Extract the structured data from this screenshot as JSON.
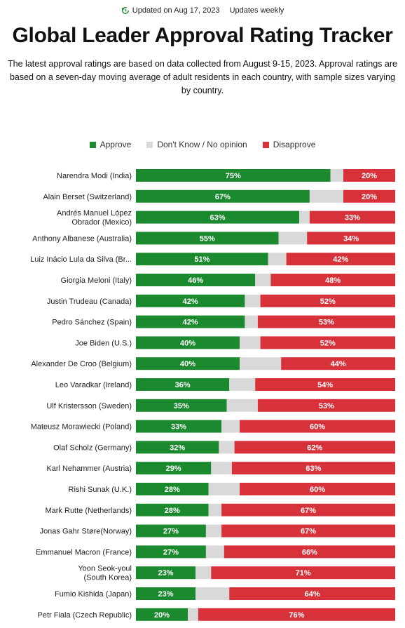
{
  "header": {
    "updated": "Updated on Aug 17, 2023",
    "frequency": "Updates weekly",
    "title": "Global Leader Approval Rating Tracker",
    "subtitle": "The latest approval ratings are based on data collected from August 9-15, 2023. Approval ratings are based on a seven-day moving average of adult residents in each country, with sample sizes varying by country."
  },
  "legend": {
    "approve": "Approve",
    "dont_know": "Don't Know / No opinion",
    "disapprove": "Disapprove"
  },
  "colors": {
    "approve": "#1b8a2e",
    "dont_know": "#d9d9d9",
    "disapprove": "#d7313a",
    "icon": "#1b8a2e"
  },
  "chart_data": {
    "type": "bar",
    "orientation": "horizontal-stacked",
    "title": "Global Leader Approval Rating Tracker",
    "categories": [
      [
        "Narendra Modi (India)"
      ],
      [
        "Alain Berset (Switzerland)"
      ],
      [
        "Andrés Manuel López",
        "Obrador (Mexico)"
      ],
      [
        "Anthony Albanese (Australia)"
      ],
      [
        "Luiz Inácio Lula da Silva (Br..."
      ],
      [
        "Giorgia Meloni (Italy)"
      ],
      [
        "Justin Trudeau (Canada)"
      ],
      [
        "Pedro Sánchez (Spain)"
      ],
      [
        "Joe Biden (U.S.)"
      ],
      [
        "Alexander De Croo (Belgium)"
      ],
      [
        "Leo Varadkar (Ireland)"
      ],
      [
        "Ulf Kristersson (Sweden)"
      ],
      [
        "Mateusz Morawiecki (Poland)"
      ],
      [
        "Olaf Scholz (Germany)"
      ],
      [
        "Karl Nehammer (Austria)"
      ],
      [
        "Rishi Sunak (U.K.)"
      ],
      [
        "Mark Rutte (Netherlands)"
      ],
      [
        "Jonas Gahr Støre(Norway)"
      ],
      [
        "Emmanuel Macron (France)"
      ],
      [
        "Yoon Seok-youl",
        "(South Korea)"
      ],
      [
        "Fumio Kishida (Japan)"
      ],
      [
        "Petr Fiala (Czech Republic)"
      ]
    ],
    "series": [
      {
        "name": "Approve",
        "values": [
          75,
          67,
          63,
          55,
          51,
          46,
          42,
          42,
          40,
          40,
          36,
          35,
          33,
          32,
          29,
          28,
          28,
          27,
          27,
          23,
          23,
          20
        ]
      },
      {
        "name": "Don't Know / No opinion",
        "values": [
          5,
          13,
          4,
          11,
          7,
          6,
          6,
          5,
          8,
          16,
          10,
          12,
          7,
          6,
          8,
          12,
          5,
          6,
          7,
          6,
          13,
          4
        ]
      },
      {
        "name": "Disapprove",
        "values": [
          20,
          20,
          33,
          34,
          42,
          48,
          52,
          53,
          52,
          44,
          54,
          53,
          60,
          62,
          63,
          60,
          67,
          67,
          66,
          71,
          64,
          76
        ]
      }
    ],
    "data_labels": [
      "Approve",
      "Disapprove"
    ],
    "xlim": [
      0,
      100
    ],
    "legend_position": "top-center",
    "grid": false
  }
}
